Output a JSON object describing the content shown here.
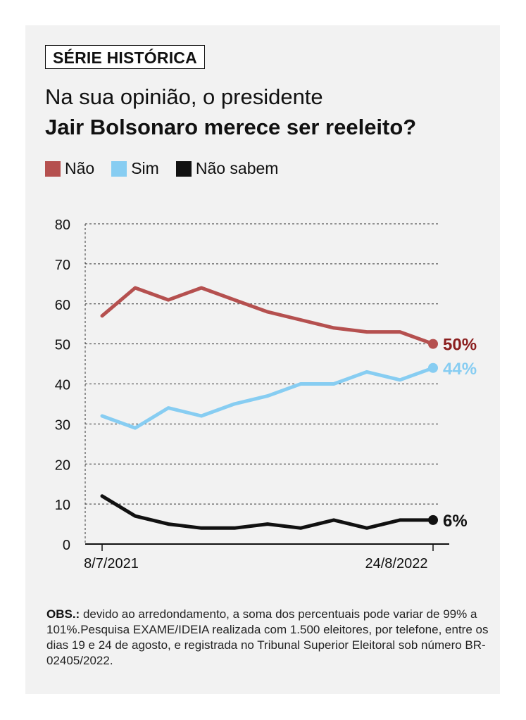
{
  "badge": "SÉRIE HISTÓRICA",
  "title_line1": "Na sua opinião, o presidente",
  "title_line2": "Jair Bolsonaro merece ser reeleito?",
  "legend": [
    {
      "label": "Não",
      "color": "#b5504f"
    },
    {
      "label": "Sim",
      "color": "#87cdf2"
    },
    {
      "label": "Não sabem",
      "color": "#111111"
    }
  ],
  "chart_data": {
    "type": "line",
    "x_start_label": "8/7/2021",
    "x_end_label": "24/8/2022",
    "ylim": [
      0,
      80
    ],
    "yticks": [
      0,
      10,
      20,
      30,
      40,
      50,
      60,
      70,
      80
    ],
    "grid": true,
    "series": [
      {
        "name": "Não",
        "color": "#b5504f",
        "values": [
          57,
          64,
          61,
          64,
          61,
          58,
          56,
          54,
          53,
          53,
          50
        ],
        "end_label": "50%",
        "end_label_color": "#8b1f1f"
      },
      {
        "name": "Sim",
        "color": "#87cdf2",
        "values": [
          32,
          29,
          34,
          32,
          35,
          37,
          40,
          40,
          43,
          41,
          44
        ],
        "end_label": "44%",
        "end_label_color": "#87cdf2"
      },
      {
        "name": "Não sabem",
        "color": "#111111",
        "values": [
          12,
          7,
          5,
          4,
          4,
          5,
          4,
          6,
          4,
          6,
          6
        ],
        "end_label": "6%",
        "end_label_color": "#111111"
      }
    ]
  },
  "note": {
    "bold": "OBS.:",
    "text": " devido ao arredondamento, a soma dos percentuais pode variar de 99% a 101%.Pesquisa EXAME/IDEIA realizada com 1.500 eleitores, por telefone, entre os dias 19 e 24 de agosto, e registrada no Tribunal Superior Eleitoral sob número BR-02405/2022."
  }
}
